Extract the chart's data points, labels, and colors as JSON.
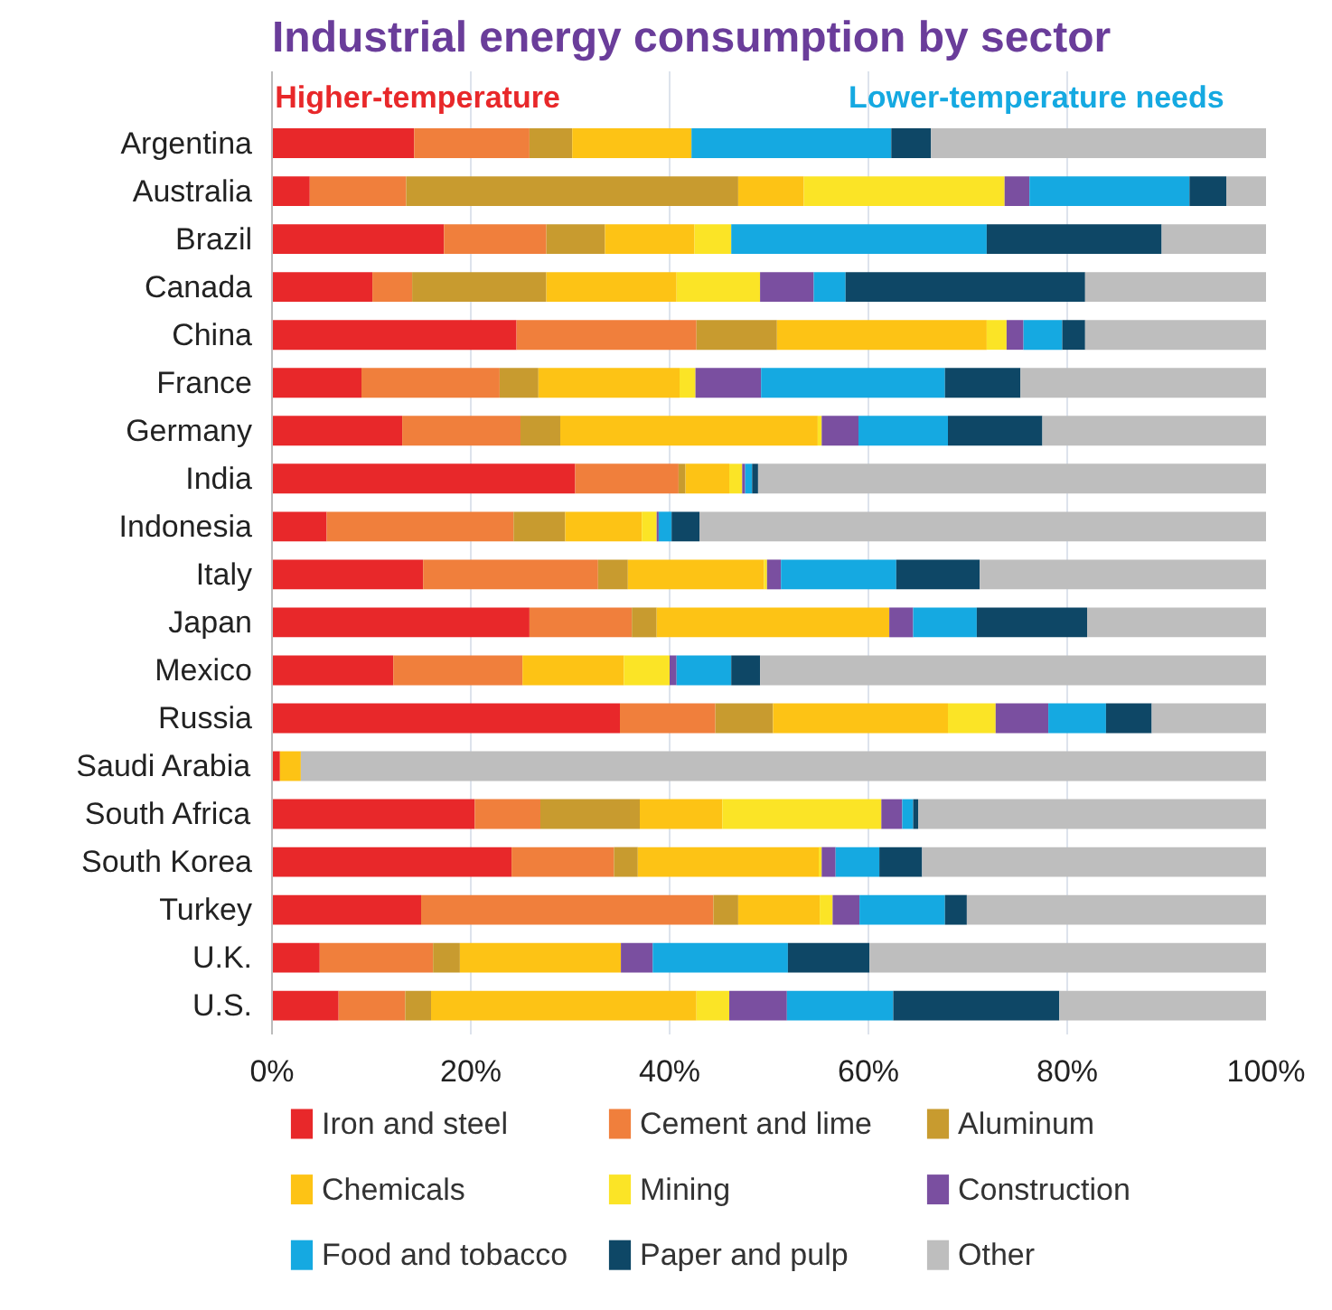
{
  "chart_data": {
    "type": "bar",
    "orientation": "horizontal",
    "stacked": true,
    "title": "Industrial energy consumption by sector",
    "annotations": [
      "Higher-temperature",
      "Lower-temperature needs"
    ],
    "categories": [
      "Argentina",
      "Australia",
      "Brazil",
      "Canada",
      "China",
      "France",
      "Germany",
      "India",
      "Indonesia",
      "Italy",
      "Japan",
      "Mexico",
      "Russia",
      "Saudi Arabia",
      "South Africa",
      "South Korea",
      "Turkey",
      "U.K.",
      "U.S."
    ],
    "xlim": [
      0,
      100
    ],
    "xticks": [
      {
        "value": 0,
        "label": "0%"
      },
      {
        "value": 20,
        "label": "20%"
      },
      {
        "value": 40,
        "label": "40%"
      },
      {
        "value": 60,
        "label": "60%"
      },
      {
        "value": 80,
        "label": "80%"
      },
      {
        "value": 100,
        "label": "100%"
      }
    ],
    "grid": "x",
    "legend": "bottom",
    "series": [
      {
        "name": "Iron and steel",
        "color": "#e8282a",
        "values": [
          14.3,
          3.8,
          17.3,
          10.1,
          24.6,
          9.0,
          13.1,
          30.5,
          5.5,
          15.2,
          25.9,
          12.2,
          35.0,
          0.8,
          20.4,
          24.1,
          15.0,
          4.8,
          6.7
        ]
      },
      {
        "name": "Cement and lime",
        "color": "#f07f3c",
        "values": [
          11.6,
          9.7,
          10.3,
          4.0,
          18.1,
          13.9,
          11.9,
          10.4,
          18.8,
          17.6,
          10.3,
          13.0,
          9.6,
          0,
          6.6,
          10.3,
          29.4,
          11.4,
          6.7
        ]
      },
      {
        "name": "Aluminum",
        "color": "#c89b2f",
        "values": [
          4.3,
          33.4,
          5.9,
          13.5,
          8.1,
          3.9,
          4.0,
          0.7,
          5.2,
          3.0,
          2.5,
          0,
          5.8,
          0,
          10.0,
          2.4,
          2.5,
          2.7,
          2.6
        ]
      },
      {
        "name": "Chemicals",
        "color": "#fdc315",
        "values": [
          12.0,
          6.6,
          9.0,
          13.1,
          21.1,
          14.2,
          25.9,
          4.4,
          7.7,
          13.7,
          23.4,
          10.2,
          17.6,
          2.1,
          8.3,
          18.2,
          8.2,
          16.2,
          26.7
        ]
      },
      {
        "name": "Mining",
        "color": "#fbe426",
        "values": [
          0,
          20.2,
          3.7,
          8.4,
          2.0,
          1.6,
          0.4,
          1.3,
          1.5,
          0.3,
          0,
          4.6,
          4.8,
          0,
          16.0,
          0.3,
          1.3,
          0,
          3.3
        ]
      },
      {
        "name": "Construction",
        "color": "#7a4fa0",
        "values": [
          0,
          2.5,
          0,
          5.4,
          1.7,
          6.6,
          3.7,
          0.3,
          0.2,
          1.4,
          2.4,
          0.7,
          5.3,
          0,
          2.1,
          1.4,
          2.7,
          3.2,
          5.8
        ]
      },
      {
        "name": "Food and tobacco",
        "color": "#15a9e1",
        "values": [
          20.1,
          16.1,
          25.7,
          3.2,
          3.9,
          18.5,
          9.0,
          0.7,
          1.3,
          11.6,
          6.4,
          5.5,
          5.8,
          0,
          1.1,
          4.4,
          8.6,
          13.6,
          10.7
        ]
      },
      {
        "name": "Paper and pulp",
        "color": "#0e4766",
        "values": [
          4.0,
          3.7,
          17.6,
          24.1,
          2.3,
          7.6,
          9.5,
          0.6,
          2.8,
          8.4,
          11.1,
          2.9,
          4.6,
          0,
          0.5,
          4.3,
          2.2,
          8.2,
          16.7
        ]
      },
      {
        "name": "Other",
        "color": "#bebebe",
        "values": [
          33.7,
          4.0,
          10.5,
          18.2,
          18.2,
          24.7,
          22.5,
          51.1,
          57.0,
          28.8,
          18.0,
          50.9,
          11.5,
          97.1,
          35.0,
          34.6,
          30.1,
          39.9,
          20.8
        ]
      }
    ]
  }
}
